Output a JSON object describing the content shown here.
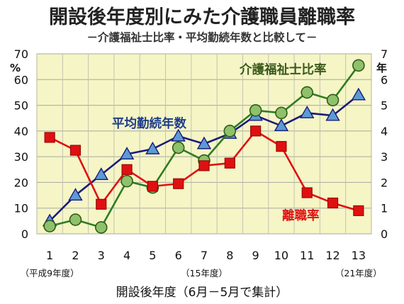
{
  "title": "開設後年度別にみた介護職員離職率",
  "subtitle": "－介護福祉士比率・平均勤続年数と比較して－",
  "chart_data": {
    "type": "line",
    "title": "開設後年度別にみた介護職員離職率",
    "subtitle": "－介護福祉士比率・平均勤続年数と比較して－",
    "x": [
      1,
      2,
      3,
      4,
      5,
      6,
      7,
      8,
      9,
      10,
      11,
      12,
      13
    ],
    "xlabel": "開設後年度（6月－5月で集計）",
    "x_notes": [
      {
        "x": 1,
        "text": "（平成9年度）"
      },
      {
        "x": 7,
        "text": "（15年度）"
      },
      {
        "x": 13,
        "text": "（21年度）"
      }
    ],
    "y_left": {
      "unit": "%",
      "ylim": [
        0,
        70
      ],
      "ticks": [
        0,
        10,
        20,
        30,
        40,
        50,
        60,
        70
      ]
    },
    "y_right": {
      "unit": "年",
      "ylim": [
        0,
        7
      ],
      "ticks": [
        0,
        1,
        2,
        3,
        4,
        5,
        6,
        7
      ]
    },
    "grid": true,
    "background": "#f5f5c6",
    "series": [
      {
        "name": "平均勤続年数",
        "axis": "right",
        "marker": "triangle",
        "color": "#1b1b7a",
        "marker_color": "#5b9bd5",
        "label_color": "#1f3d8a",
        "values": [
          0.5,
          1.5,
          2.3,
          3.1,
          3.3,
          3.8,
          3.5,
          3.9,
          4.6,
          4.2,
          4.7,
          4.6,
          5.4
        ]
      },
      {
        "name": "介護福祉士比率",
        "axis": "left",
        "marker": "circle",
        "color": "#2e7d20",
        "marker_color": "#8fc16a",
        "label_color": "#3c5a1c",
        "values": [
          3,
          5.5,
          2.5,
          20.5,
          18,
          33.5,
          28.5,
          40,
          48,
          47,
          55,
          52,
          65.5
        ]
      },
      {
        "name": "離職率",
        "axis": "left",
        "marker": "square",
        "color": "#e01010",
        "marker_color": "#e01010",
        "label_color": "#e01010",
        "values": [
          37.5,
          32.5,
          11.5,
          25,
          18.5,
          19.5,
          26.5,
          27.5,
          40,
          34,
          16,
          12,
          9
        ]
      }
    ]
  }
}
